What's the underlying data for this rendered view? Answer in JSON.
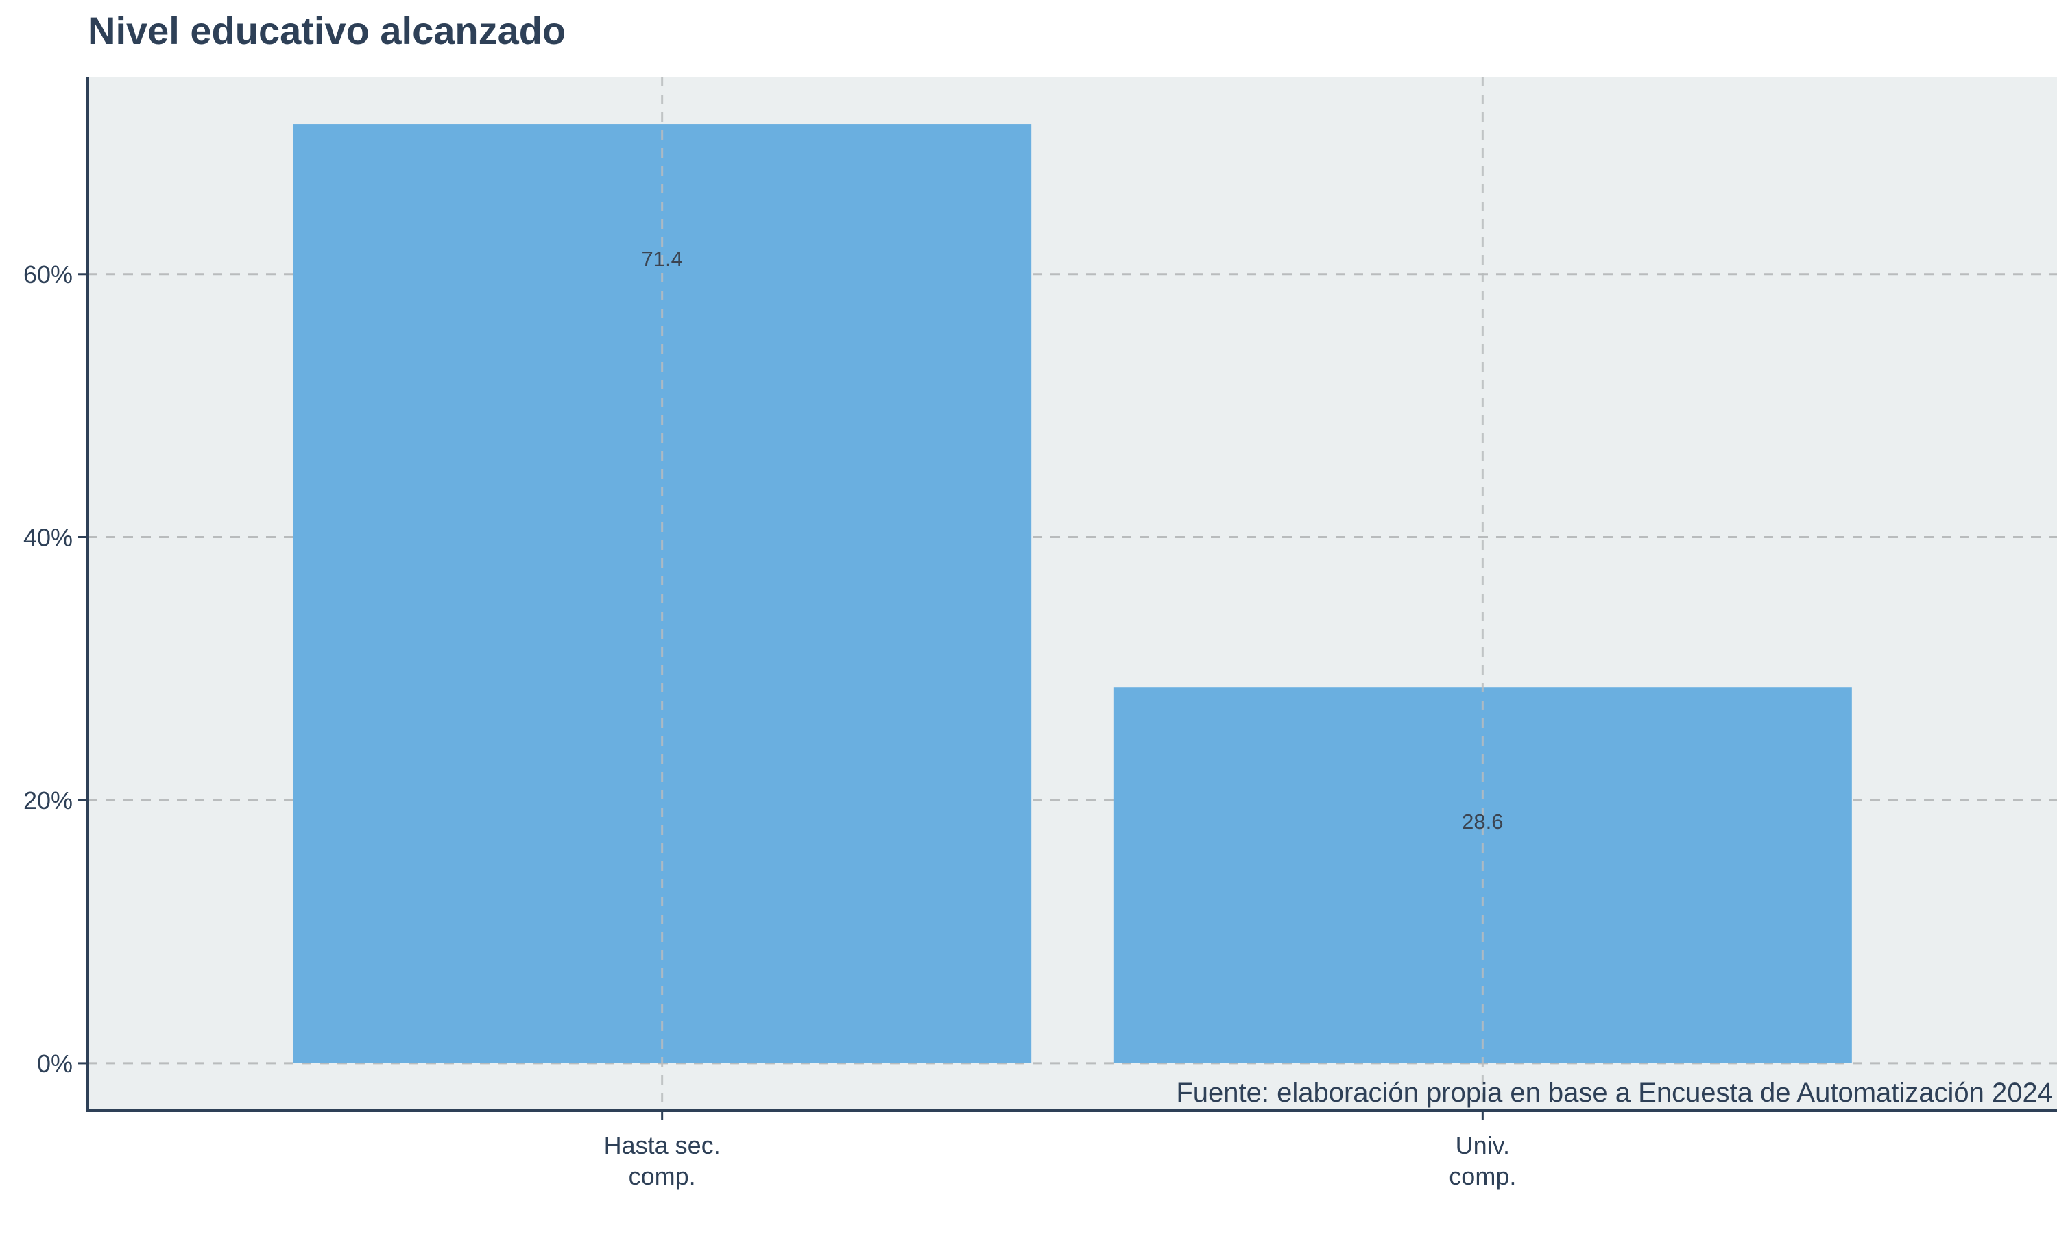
{
  "chart_data": {
    "type": "bar",
    "title": "Nivel educativo alcanzado",
    "caption": "Fuente: elaboración propia en base a Encuesta de Automatización 2024",
    "categories": [
      [
        "Hasta sec.",
        "comp."
      ],
      [
        "Univ.",
        "comp."
      ]
    ],
    "values": [
      71.4,
      28.6
    ],
    "data_labels": [
      "71.4",
      "28.6"
    ],
    "y_ticks": [
      0,
      20,
      40,
      60
    ],
    "y_tick_labels": [
      "0%",
      "20%",
      "40%",
      "60%"
    ],
    "ylim": [
      -3.6,
      75
    ],
    "xlabel": "",
    "ylabel": "",
    "grid": true,
    "colors": {
      "bar": "#6aafe0",
      "panel": "#ebeff0",
      "grid": "#b9bcbd",
      "axis": "#2e4057",
      "text": "#2e4057",
      "label": "#3b4451"
    }
  }
}
